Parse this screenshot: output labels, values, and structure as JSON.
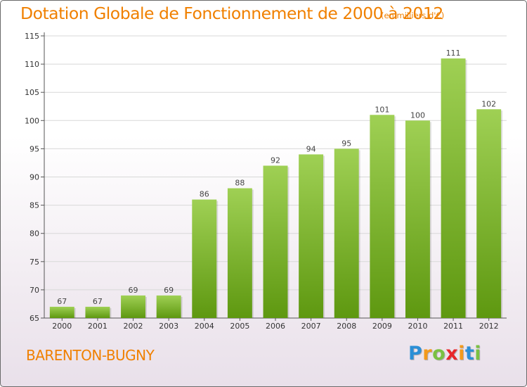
{
  "chart_data": {
    "type": "bar",
    "title": "Dotation Globale de Fonctionnement de 2000 à 2012",
    "subtitle": "(en milliers d'€)",
    "categories": [
      "2000",
      "2001",
      "2002",
      "2003",
      "2004",
      "2005",
      "2006",
      "2007",
      "2008",
      "2009",
      "2010",
      "2011",
      "2012"
    ],
    "values": [
      67,
      67,
      69,
      69,
      86,
      88,
      92,
      94,
      95,
      101,
      100,
      111,
      102
    ],
    "value_labels": [
      "67",
      "67",
      "69",
      "69",
      "86",
      "88",
      "92",
      "94",
      "95",
      "101",
      "100",
      "111",
      "102"
    ],
    "ylim": [
      65,
      115
    ],
    "yticks": [
      "65",
      "70",
      "75",
      "80",
      "85",
      "90",
      "95",
      "100",
      "105",
      "110",
      "115"
    ],
    "grid": true,
    "colors": {
      "bar_top": "#9fd054",
      "bar_bottom": "#5e9810",
      "title": "#f08000",
      "grid": "#d8d8d8"
    }
  },
  "footer": {
    "place_name": "BARENTON-BUGNY",
    "logo_letters": [
      {
        "char": "P",
        "color": "#2b8fd6"
      },
      {
        "char": "r",
        "color": "#f39a1b"
      },
      {
        "char": "o",
        "color": "#7ac142"
      },
      {
        "char": "x",
        "color": "#e8262a"
      },
      {
        "char": "i",
        "color": "#f39a1b"
      },
      {
        "char": "t",
        "color": "#2b8fd6"
      },
      {
        "char": "i",
        "color": "#7ac142"
      }
    ]
  }
}
